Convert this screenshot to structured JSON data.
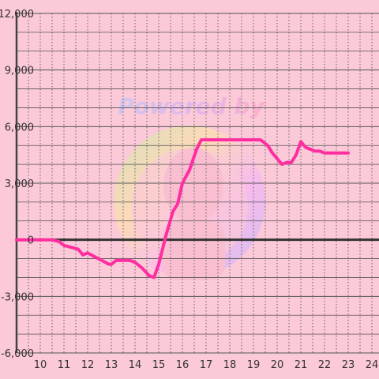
{
  "colors": {
    "background": "#fcc9d8",
    "grid": "#555555",
    "zero_line": "#333333",
    "axis": "#444444",
    "series": "#ff2ea0"
  },
  "watermark": {
    "text": "Powered by"
  },
  "chart_data": {
    "type": "line",
    "title": "",
    "xlabel": "",
    "ylabel": "",
    "xlim": [
      9.0,
      24.3
    ],
    "ylim": [
      -6000,
      12000
    ],
    "x_ticks": [
      10,
      11,
      12,
      13,
      14,
      15,
      16,
      17,
      18,
      19,
      20,
      21,
      22,
      23,
      24
    ],
    "x_tick_labels": [
      "10",
      "11",
      "12",
      "13",
      "14",
      "15",
      "16",
      "17",
      "18",
      "19",
      "20",
      "21",
      "22",
      "23",
      "24"
    ],
    "y_ticks": [
      -6000,
      -3000,
      0,
      3000,
      6000,
      9000,
      12000
    ],
    "y_tick_labels": [
      "-6,000",
      "-3,000",
      "0",
      "3,000",
      "6,000",
      "9,000",
      "12,000"
    ],
    "y_minor_step": 1000,
    "x_minor_step": 0.5,
    "grid": true,
    "series": [
      {
        "x": [
          9.0,
          9.5,
          10.0,
          10.5,
          10.8,
          11.0,
          11.3,
          11.6,
          11.8,
          12.0,
          12.3,
          12.6,
          12.9,
          13.0,
          13.2,
          13.5,
          13.8,
          14.0,
          14.3,
          14.6,
          14.8,
          15.0,
          15.3,
          15.6,
          15.8,
          16.0,
          16.3,
          16.6,
          16.8,
          17.0,
          17.3,
          18.0,
          18.5,
          19.0,
          19.3,
          19.6,
          19.8,
          20.0,
          20.2,
          20.4,
          20.6,
          20.8,
          21.0,
          21.2,
          21.4,
          21.6,
          21.8,
          22.0,
          22.2,
          22.5,
          23.0
        ],
        "y": [
          0,
          0,
          0,
          0,
          -100,
          -300,
          -400,
          -500,
          -800,
          -700,
          -900,
          -1100,
          -1300,
          -1300,
          -1100,
          -1100,
          -1100,
          -1200,
          -1500,
          -1900,
          -2000,
          -1300,
          200,
          1500,
          1900,
          3000,
          3700,
          4800,
          5300,
          5300,
          5300,
          5300,
          5300,
          5300,
          5300,
          5000,
          4600,
          4300,
          4000,
          4100,
          4100,
          4500,
          5200,
          4900,
          4800,
          4700,
          4700,
          4600,
          4600,
          4600,
          4600
        ]
      }
    ]
  }
}
